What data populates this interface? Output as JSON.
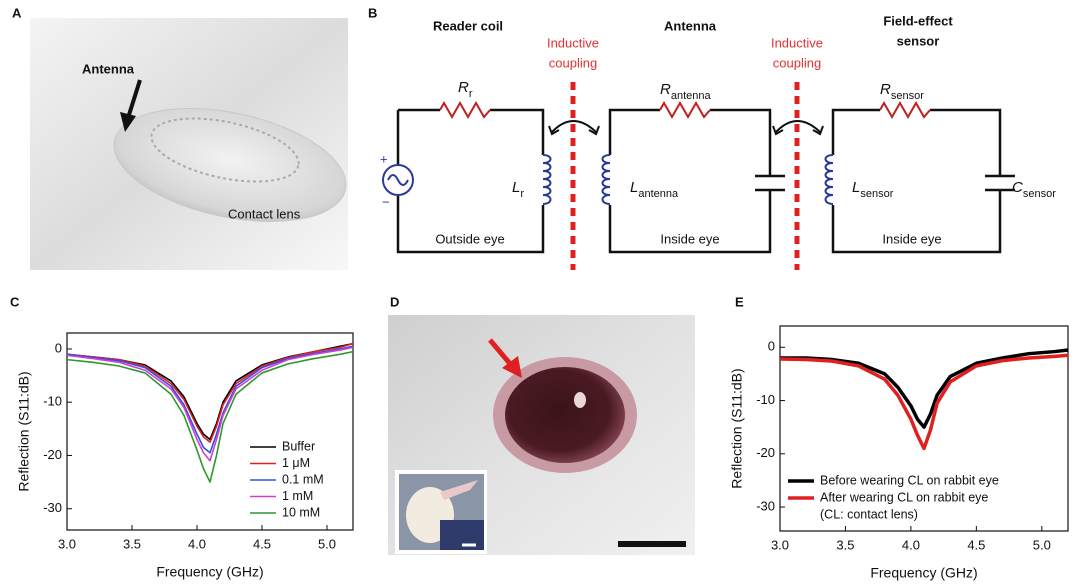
{
  "panel_labels": [
    "A",
    "B",
    "C",
    "D",
    "E"
  ],
  "photo_a": {
    "antenna": "Antenna",
    "lens": "Contact lens"
  },
  "circuit": {
    "titles": [
      [
        "Reader coil"
      ],
      [
        "Antenna"
      ],
      [
        "Field-effect",
        "sensor"
      ]
    ],
    "couplings": [
      [
        "Inductive",
        "coupling"
      ],
      [
        "Inductive",
        "coupling"
      ]
    ],
    "locations": [
      "Outside eye",
      "Inside eye",
      "Inside eye"
    ],
    "components": [
      {
        "symbol": "R",
        "sub": "r"
      },
      {
        "symbol": "L",
        "sub": "r"
      },
      {
        "symbol": "R",
        "sub": "antenna"
      },
      {
        "symbol": "L",
        "sub": "antenna"
      },
      {
        "symbol": "R",
        "sub": "sensor"
      },
      {
        "symbol": "L",
        "sub": "sensor"
      },
      {
        "symbol": "C",
        "sub": "sensor"
      }
    ],
    "polarity": [
      "+",
      "−"
    ]
  },
  "chart_data": [
    {
      "type": "line",
      "xlabel": "Frequency (GHz)",
      "ylabel": "Reflection (S11:dB)",
      "xlim": [
        3.0,
        5.2
      ],
      "ylim": [
        -34,
        3
      ],
      "xticks": [
        {
          "value": 3.0,
          "label": "3.0"
        },
        {
          "value": 3.5,
          "label": "3.5"
        },
        {
          "value": 4.0,
          "label": "4.0"
        },
        {
          "value": 4.5,
          "label": "4.5"
        },
        {
          "value": 5.0,
          "label": "5.0"
        }
      ],
      "yticks": [
        0,
        -10,
        -20,
        -30
      ],
      "x": [
        3.0,
        3.2,
        3.4,
        3.6,
        3.8,
        3.9,
        4.0,
        4.05,
        4.1,
        4.15,
        4.2,
        4.3,
        4.5,
        4.7,
        4.9,
        5.1,
        5.2
      ],
      "series": [
        {
          "name": "Buffer",
          "color": "#000000",
          "values": [
            -1,
            -1.5,
            -2,
            -3,
            -6,
            -9,
            -14,
            -16,
            -17,
            -14,
            -10,
            -6,
            -3,
            -1.5,
            -0.5,
            0.5,
            1
          ]
        },
        {
          "name": "1 μM",
          "color": "#e02020",
          "values": [
            -1,
            -1.5,
            -2,
            -3.2,
            -6.5,
            -9.5,
            -14.5,
            -16.5,
            -17.5,
            -14.5,
            -10.5,
            -6.5,
            -3.2,
            -1.6,
            -0.5,
            0.3,
            1
          ]
        },
        {
          "name": "0.1 mM",
          "color": "#3050e0",
          "values": [
            -1,
            -1.6,
            -2.2,
            -3.5,
            -7,
            -10.5,
            -16,
            -18.5,
            -19.5,
            -16,
            -12,
            -7,
            -3.5,
            -1.8,
            -0.8,
            0,
            0.5
          ]
        },
        {
          "name": "1 mM",
          "color": "#d040d0",
          "values": [
            -1.2,
            -1.8,
            -2.5,
            -4,
            -7.5,
            -11,
            -17,
            -19.5,
            -21,
            -17,
            -12.5,
            -7.5,
            -4,
            -2,
            -1,
            -0.2,
            0.3
          ]
        },
        {
          "name": "10 mM",
          "color": "#2a9a2a",
          "values": [
            -2,
            -2.5,
            -3.2,
            -4.5,
            -8.5,
            -12.5,
            -19,
            -22.5,
            -25,
            -20,
            -14,
            -8.5,
            -4.5,
            -2.8,
            -1.8,
            -1,
            -0.5
          ]
        }
      ]
    },
    {
      "type": "line",
      "xlabel": "Frequency (GHz)",
      "ylabel": "Reflection (S11:dB)",
      "xlim": [
        3.0,
        5.2
      ],
      "ylim": [
        -34.5,
        4
      ],
      "xticks": [
        {
          "value": 3.0,
          "label": "3.0"
        },
        {
          "value": 3.5,
          "label": "3.5"
        },
        {
          "value": 4.0,
          "label": "4.0"
        },
        {
          "value": 4.5,
          "label": "4.5"
        },
        {
          "value": 5.0,
          "label": "5.0"
        }
      ],
      "yticks": [
        0,
        -10,
        -20,
        -30
      ],
      "x": [
        3.0,
        3.2,
        3.4,
        3.6,
        3.8,
        3.9,
        4.0,
        4.05,
        4.1,
        4.15,
        4.2,
        4.3,
        4.5,
        4.7,
        4.9,
        5.1,
        5.2
      ],
      "series": [
        {
          "name": "Before wearing CL on rabbit eye",
          "color": "#000000",
          "values": [
            -2,
            -2,
            -2.3,
            -3,
            -5,
            -7.5,
            -11,
            -13.5,
            -15,
            -12.5,
            -9,
            -5.5,
            -3,
            -2,
            -1.2,
            -0.8,
            -0.5
          ]
        },
        {
          "name": "After wearing CL on rabbit eye",
          "color": "#e02020",
          "values": [
            -2.2,
            -2.3,
            -2.6,
            -3.5,
            -6,
            -9,
            -13.5,
            -16.5,
            -19,
            -15.5,
            -10.5,
            -6.5,
            -3.5,
            -2.5,
            -2,
            -1.7,
            -1.5
          ]
        }
      ],
      "legend_note": "(CL: contact lens)"
    }
  ]
}
